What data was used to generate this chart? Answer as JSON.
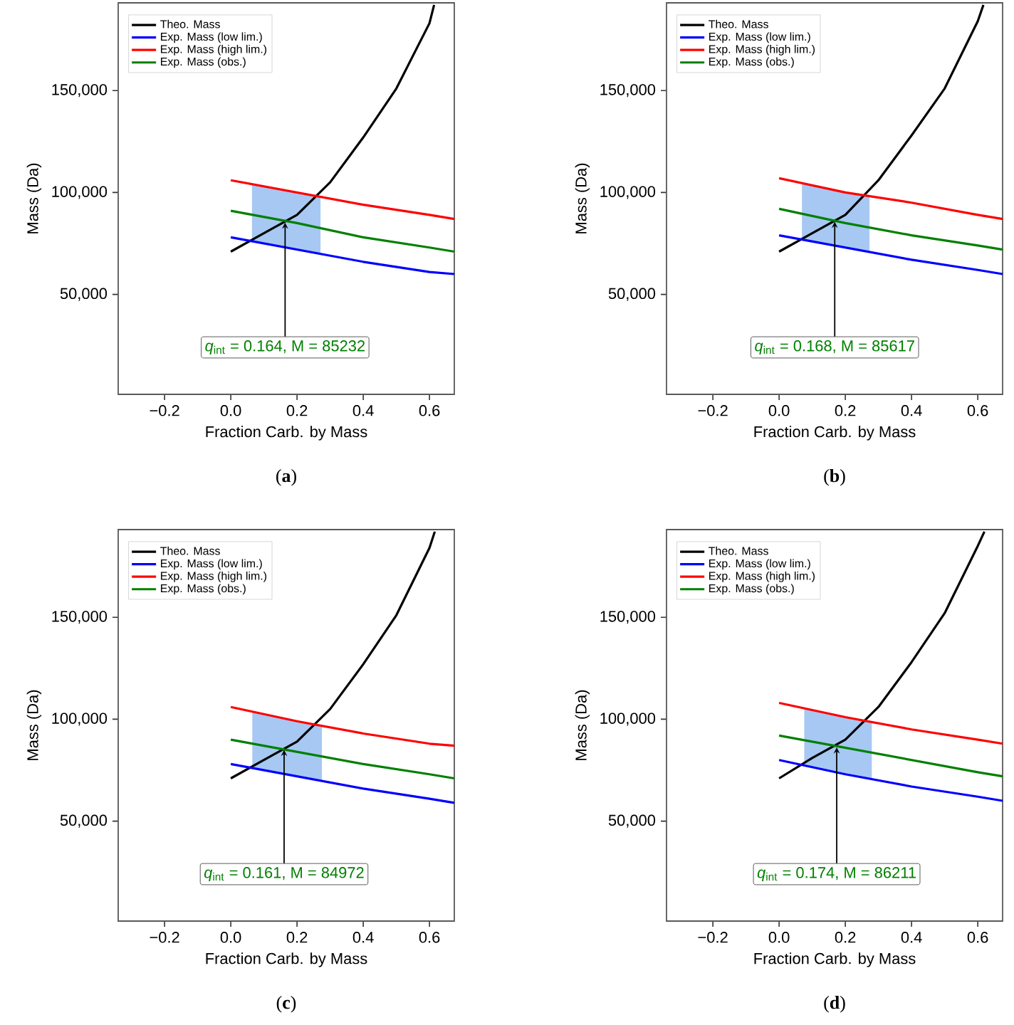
{
  "chart_data": [
    {
      "type": "line",
      "title": "(**a**)",
      "xlabel": "Fraction Carb. by Mass",
      "ylabel": "Mass (Da)",
      "xlim": [
        -0.34,
        0.675
      ],
      "ylim": [
        1000,
        193000
      ],
      "xticks": [
        {
          "value": -0.2,
          "label": "−0.2"
        },
        {
          "value": 0,
          "label": "0.0"
        },
        {
          "value": 0.2,
          "label": "0.2"
        },
        {
          "value": 0.4,
          "label": "0.4"
        },
        {
          "value": 0.6,
          "label": "0.6"
        }
      ],
      "yticks": [
        {
          "value": 50000,
          "label": "50,000"
        },
        {
          "value": 100000,
          "label": "100,000"
        },
        {
          "value": 150000,
          "label": "150,000"
        }
      ],
      "legend": "top left",
      "series": [
        {
          "name": "Theo. Mass",
          "color": "#000000",
          "x": [
            0,
            0.1,
            0.2,
            0.3,
            0.4,
            0.5,
            0.6,
            0.614
          ],
          "values": [
            71000,
            80000,
            89000,
            105000,
            127000,
            151000,
            183000,
            192000
          ]
        },
        {
          "name": "Exp. Mass (low lim.)",
          "color": "#0000ff",
          "x": [
            0,
            0.2,
            0.4,
            0.6,
            0.675
          ],
          "values": [
            78000,
            72000,
            66000,
            61000,
            60000
          ]
        },
        {
          "name": "Exp. Mass (high lim.)",
          "color": "#ff0000",
          "x": [
            0,
            0.2,
            0.4,
            0.6,
            0.675
          ],
          "values": [
            106000,
            100000,
            94000,
            89000,
            87000
          ]
        },
        {
          "name": "Exp. Mass (obs.)",
          "color": "#008000",
          "x": [
            0,
            0.2,
            0.4,
            0.6,
            0.675
          ],
          "values": [
            91000,
            85000,
            78000,
            73000,
            71000
          ]
        }
      ],
      "bands": [
        {
          "axis": "x",
          "from": 0.064,
          "to": 0.271,
          "color": "#a6c8f2"
        }
      ],
      "annotations": [
        {
          "text": "*q*$_{int}$ = 0.164, M = 85232",
          "x": 0.164,
          "y": 85232
        }
      ]
    },
    {
      "type": "line",
      "title": "(**b**)",
      "xlabel": "Fraction Carb. by Mass",
      "ylabel": "Mass (Da)",
      "xlim": [
        -0.34,
        0.675
      ],
      "ylim": [
        1000,
        193000
      ],
      "xticks": [
        {
          "value": -0.2,
          "label": "−0.2"
        },
        {
          "value": 0,
          "label": "0.0"
        },
        {
          "value": 0.2,
          "label": "0.2"
        },
        {
          "value": 0.4,
          "label": "0.4"
        },
        {
          "value": 0.6,
          "label": "0.6"
        }
      ],
      "yticks": [
        {
          "value": 50000,
          "label": "50,000"
        },
        {
          "value": 100000,
          "label": "100,000"
        },
        {
          "value": 150000,
          "label": "150,000"
        }
      ],
      "legend": "top left",
      "series": [
        {
          "name": "Theo. Mass",
          "color": "#000000",
          "x": [
            0,
            0.1,
            0.2,
            0.3,
            0.4,
            0.5,
            0.6,
            0.617
          ],
          "values": [
            71000,
            80000,
            89000,
            106000,
            128000,
            151000,
            184000,
            192000
          ]
        },
        {
          "name": "Exp. Mass (low lim.)",
          "color": "#0000ff",
          "x": [
            0,
            0.2,
            0.4,
            0.6,
            0.675
          ],
          "values": [
            79000,
            73000,
            67000,
            62000,
            60000
          ]
        },
        {
          "name": "Exp. Mass (high lim.)",
          "color": "#ff0000",
          "x": [
            0,
            0.2,
            0.4,
            0.6,
            0.675
          ],
          "values": [
            107000,
            100000,
            95000,
            89000,
            87000
          ]
        },
        {
          "name": "Exp. Mass (obs.)",
          "color": "#008000",
          "x": [
            0,
            0.2,
            0.4,
            0.6,
            0.675
          ],
          "values": [
            92000,
            85000,
            79000,
            74000,
            72000
          ]
        }
      ],
      "bands": [
        {
          "axis": "x",
          "from": 0.069,
          "to": 0.273,
          "color": "#a6c8f2"
        }
      ],
      "annotations": [
        {
          "text": "*q*$_{int}$ = 0.168, M = 85617",
          "x": 0.168,
          "y": 85617
        }
      ]
    },
    {
      "type": "line",
      "title": "(**c**)",
      "xlabel": "Fraction Carb. by Mass",
      "ylabel": "Mass (Da)",
      "xlim": [
        -0.34,
        0.675
      ],
      "ylim": [
        1000,
        193000
      ],
      "xticks": [
        {
          "value": -0.2,
          "label": "−0.2"
        },
        {
          "value": 0,
          "label": "0.0"
        },
        {
          "value": 0.2,
          "label": "0.2"
        },
        {
          "value": 0.4,
          "label": "0.4"
        },
        {
          "value": 0.6,
          "label": "0.6"
        }
      ],
      "yticks": [
        {
          "value": 50000,
          "label": "50,000"
        },
        {
          "value": 100000,
          "label": "100,000"
        },
        {
          "value": 150000,
          "label": "150,000"
        }
      ],
      "legend": "top left",
      "series": [
        {
          "name": "Theo. Mass",
          "color": "#000000",
          "x": [
            0,
            0.1,
            0.2,
            0.3,
            0.4,
            0.5,
            0.6,
            0.616
          ],
          "values": [
            71000,
            80000,
            89000,
            105000,
            127000,
            151000,
            184000,
            192000
          ]
        },
        {
          "name": "Exp. Mass (low lim.)",
          "color": "#0000ff",
          "x": [
            0,
            0.2,
            0.4,
            0.6,
            0.675
          ],
          "values": [
            78000,
            72000,
            66000,
            61000,
            59000
          ]
        },
        {
          "name": "Exp. Mass (high lim.)",
          "color": "#ff0000",
          "x": [
            0,
            0.2,
            0.4,
            0.6,
            0.675
          ],
          "values": [
            106000,
            99000,
            93000,
            88000,
            87000
          ]
        },
        {
          "name": "Exp. Mass (obs.)",
          "color": "#008000",
          "x": [
            0,
            0.2,
            0.4,
            0.6,
            0.675
          ],
          "values": [
            90000,
            84000,
            78000,
            73000,
            71000
          ]
        }
      ],
      "bands": [
        {
          "axis": "x",
          "from": 0.065,
          "to": 0.275,
          "color": "#a6c8f2"
        }
      ],
      "annotations": [
        {
          "text": "*q*$_{int}$ = 0.161, M = 84972",
          "x": 0.161,
          "y": 84972
        }
      ]
    },
    {
      "type": "line",
      "title": "(**d**)",
      "xlabel": "Fraction Carb. by Mass",
      "ylabel": "Mass (Da)",
      "xlim": [
        -0.34,
        0.675
      ],
      "ylim": [
        1000,
        193000
      ],
      "xticks": [
        {
          "value": -0.2,
          "label": "−0.2"
        },
        {
          "value": 0,
          "label": "0.0"
        },
        {
          "value": 0.2,
          "label": "0.2"
        },
        {
          "value": 0.4,
          "label": "0.4"
        },
        {
          "value": 0.6,
          "label": "0.6"
        }
      ],
      "yticks": [
        {
          "value": 50000,
          "label": "50,000"
        },
        {
          "value": 100000,
          "label": "100,000"
        },
        {
          "value": 150000,
          "label": "150,000"
        }
      ],
      "legend": "top left",
      "series": [
        {
          "name": "Theo. Mass",
          "color": "#000000",
          "x": [
            0,
            0.1,
            0.2,
            0.3,
            0.4,
            0.5,
            0.6,
            0.62
          ],
          "values": [
            71000,
            81000,
            90000,
            106000,
            128000,
            152000,
            185000,
            192000
          ]
        },
        {
          "name": "Exp. Mass (low lim.)",
          "color": "#0000ff",
          "x": [
            0,
            0.2,
            0.4,
            0.6,
            0.675
          ],
          "values": [
            80000,
            73000,
            67000,
            62000,
            60000
          ]
        },
        {
          "name": "Exp. Mass (high lim.)",
          "color": "#ff0000",
          "x": [
            0,
            0.2,
            0.4,
            0.6,
            0.675
          ],
          "values": [
            108000,
            101000,
            95000,
            90000,
            88000
          ]
        },
        {
          "name": "Exp. Mass (obs.)",
          "color": "#008000",
          "x": [
            0,
            0.2,
            0.4,
            0.6,
            0.675
          ],
          "values": [
            92000,
            86000,
            80000,
            74000,
            72000
          ]
        }
      ],
      "bands": [
        {
          "axis": "x",
          "from": 0.076,
          "to": 0.28,
          "color": "#a6c8f2"
        }
      ],
      "annotations": [
        {
          "text": "*q*$_{int}$ = 0.174, M = 86211",
          "x": 0.174,
          "y": 86211
        }
      ]
    }
  ]
}
